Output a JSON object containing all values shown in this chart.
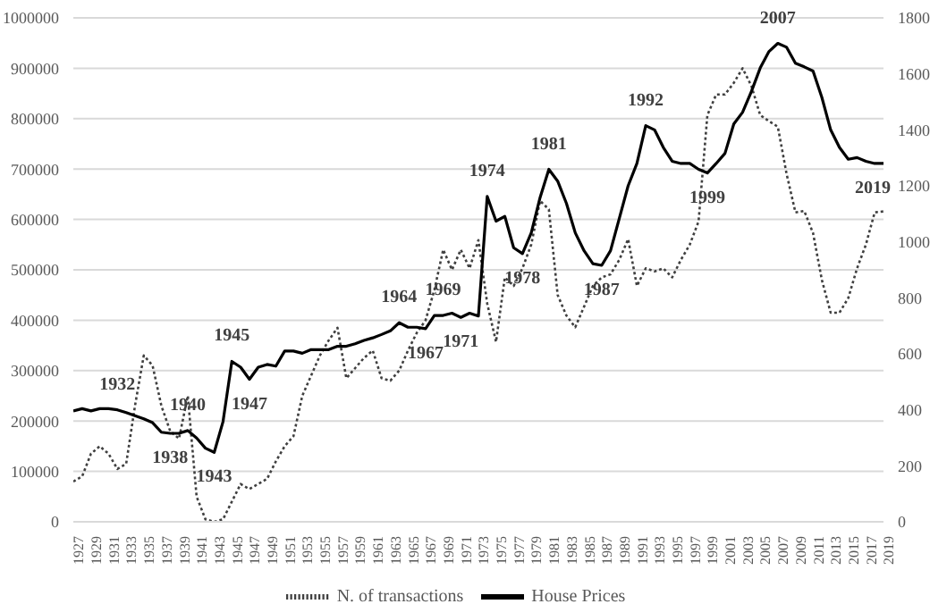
{
  "chart_data": {
    "type": "line",
    "x": [
      1927,
      1928,
      1929,
      1930,
      1931,
      1932,
      1933,
      1934,
      1935,
      1936,
      1937,
      1938,
      1939,
      1940,
      1941,
      1942,
      1943,
      1944,
      1945,
      1946,
      1947,
      1948,
      1949,
      1950,
      1951,
      1952,
      1953,
      1954,
      1955,
      1956,
      1957,
      1958,
      1959,
      1960,
      1961,
      1962,
      1963,
      1964,
      1965,
      1966,
      1967,
      1968,
      1969,
      1970,
      1971,
      1972,
      1973,
      1974,
      1975,
      1976,
      1977,
      1978,
      1979,
      1980,
      1981,
      1982,
      1983,
      1984,
      1985,
      1986,
      1987,
      1988,
      1989,
      1990,
      1991,
      1992,
      1993,
      1994,
      1995,
      1996,
      1997,
      1998,
      1999,
      2000,
      2001,
      2002,
      2003,
      2004,
      2005,
      2006,
      2007,
      2008,
      2009,
      2010,
      2011,
      2012,
      2013,
      2014,
      2015,
      2016,
      2017,
      2018,
      2019
    ],
    "series": [
      {
        "name": "N. of transactions",
        "color": "#404040",
        "line_style": "dotted",
        "values": [
          80000,
          90000,
          135000,
          150000,
          135000,
          105000,
          115000,
          230000,
          330000,
          310000,
          230000,
          180000,
          165000,
          250000,
          50000,
          5000,
          0,
          5000,
          40000,
          75000,
          65000,
          75000,
          85000,
          120000,
          150000,
          170000,
          250000,
          290000,
          330000,
          360000,
          385000,
          285000,
          305000,
          325000,
          340000,
          285000,
          280000,
          300000,
          340000,
          375000,
          400000,
          460000,
          540000,
          500000,
          540000,
          503000,
          559000,
          433000,
          357000,
          485000,
          468000,
          503000,
          550000,
          637000,
          620000,
          450000,
          409000,
          386000,
          427000,
          468000,
          485000,
          491000,
          520000,
          561000,
          468000,
          503000,
          497000,
          503000,
          485000,
          520000,
          550000,
          596000,
          807000,
          848000,
          848000,
          871000,
          900000,
          865000,
          807000,
          795000,
          784000,
          690000,
          614000,
          617000,
          573000,
          480000,
          415000,
          415000,
          444000,
          503000,
          550000,
          614000,
          616000
        ]
      },
      {
        "name": "House Prices",
        "color": "#000000",
        "line_style": "solid",
        "axis": "y2",
        "values": [
          396,
          404,
          396,
          404,
          404,
          400,
          390,
          379,
          368,
          354,
          320,
          316,
          316,
          326,
          299,
          263,
          248,
          358,
          573,
          552,
          509,
          552,
          562,
          556,
          610,
          610,
          602,
          615,
          615,
          615,
          627,
          627,
          636,
          648,
          657,
          669,
          682,
          711,
          695,
          695,
          690,
          737,
          737,
          745,
          730,
          745,
          735,
          1162,
          1074,
          1091,
          979,
          958,
          1032,
          1158,
          1259,
          1217,
          1137,
          1032,
          968,
          922,
          916,
          968,
          1084,
          1200,
          1280,
          1415,
          1400,
          1337,
          1288,
          1280,
          1280,
          1259,
          1246,
          1280,
          1316,
          1421,
          1463,
          1537,
          1621,
          1680,
          1709,
          1695,
          1638,
          1625,
          1610,
          1516,
          1400,
          1337,
          1295,
          1301,
          1288,
          1280,
          1280
        ]
      }
    ],
    "xlim": [
      1927,
      2019
    ],
    "xticks": [
      1927,
      1929,
      1931,
      1933,
      1935,
      1937,
      1939,
      1941,
      1943,
      1945,
      1947,
      1949,
      1951,
      1953,
      1955,
      1957,
      1959,
      1961,
      1963,
      1965,
      1967,
      1969,
      1971,
      1973,
      1975,
      1977,
      1979,
      1981,
      1983,
      1985,
      1987,
      1989,
      1991,
      1993,
      1995,
      1997,
      1999,
      2001,
      2003,
      2005,
      2007,
      2009,
      2011,
      2013,
      2015,
      2017,
      2019
    ],
    "ylim": [
      0,
      1000000
    ],
    "yticks": [
      0,
      100000,
      200000,
      300000,
      400000,
      500000,
      600000,
      700000,
      800000,
      900000,
      1000000
    ],
    "y2lim": [
      0,
      1800
    ],
    "y2ticks": [
      0,
      200,
      400,
      600,
      800,
      1000,
      1200,
      1400,
      1600,
      1800
    ],
    "grid": "y",
    "legend": "bottom",
    "annotations": [
      {
        "text": "1932",
        "x": 1932,
        "y": 222200
      },
      {
        "text": "1938",
        "x": 1938,
        "y": 175600
      },
      {
        "text": "1940",
        "x": 1940,
        "y": 181100
      },
      {
        "text": "1943",
        "x": 1943,
        "y": 137800
      },
      {
        "text": "1945",
        "x": 1945,
        "y": 318300
      },
      {
        "text": "1947",
        "x": 1947,
        "y": 282800
      },
      {
        "text": "1964",
        "x": 1964,
        "y": 395000
      },
      {
        "text": "1967",
        "x": 1967,
        "y": 383300
      },
      {
        "text": "1969",
        "x": 1969,
        "y": 409400
      },
      {
        "text": "1971",
        "x": 1971,
        "y": 405600
      },
      {
        "text": "1974",
        "x": 1974,
        "y": 645600
      },
      {
        "text": "1978",
        "x": 1978,
        "y": 532200
      },
      {
        "text": "1981",
        "x": 1981,
        "y": 699400
      },
      {
        "text": "1987",
        "x": 1987,
        "y": 508900
      },
      {
        "text": "1992",
        "x": 1992,
        "y": 786100
      },
      {
        "text": "1999",
        "x": 1999,
        "y": 692200
      },
      {
        "text": "2007",
        "x": 2007,
        "y": 949400
      },
      {
        "text": "2019",
        "x": 2019,
        "y": 711100
      }
    ]
  }
}
